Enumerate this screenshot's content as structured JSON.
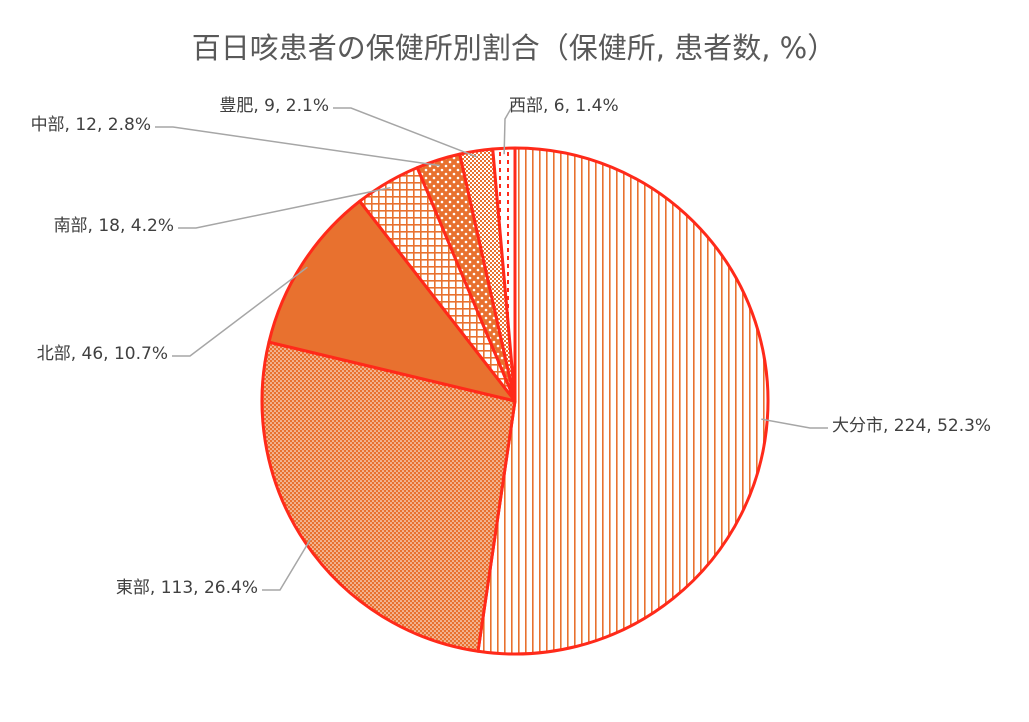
{
  "chart_data": {
    "type": "pie",
    "title": "百日咳患者の保健所別割合（保健所, 患者数, %）",
    "slices": [
      {
        "name": "大分市",
        "value": 224,
        "percent": 52.3,
        "label": "大分市, 224, 52.3%",
        "color": "#e8712f",
        "pattern": "vertical-lines"
      },
      {
        "name": "東部",
        "value": 113,
        "percent": 26.4,
        "label": "東部, 113, 26.4%",
        "color": "#e8712f",
        "pattern": "fine-dots"
      },
      {
        "name": "北部",
        "value": 46,
        "percent": 10.7,
        "label": "北部, 46, 10.7%",
        "color": "#e8712f",
        "pattern": "solid"
      },
      {
        "name": "南部",
        "value": 18,
        "percent": 4.2,
        "label": "南部, 18, 4.2%",
        "color": "#e8712f",
        "pattern": "grid"
      },
      {
        "name": "中部",
        "value": 12,
        "percent": 2.8,
        "label": "中部, 12, 2.8%",
        "color": "#e8712f",
        "pattern": "large-dots"
      },
      {
        "name": "豊肥",
        "value": 9,
        "percent": 2.1,
        "label": "豊肥, 9, 2.1%",
        "color": "#e8712f",
        "pattern": "checker"
      },
      {
        "name": "西部",
        "value": 6,
        "percent": 1.4,
        "label": "西部, 6, 1.4%",
        "color": "#e8712f",
        "pattern": "dashes"
      }
    ],
    "slice_border_color": "#ff2a1a",
    "leader_line_color": "#a6a6a6",
    "legend": "none"
  }
}
